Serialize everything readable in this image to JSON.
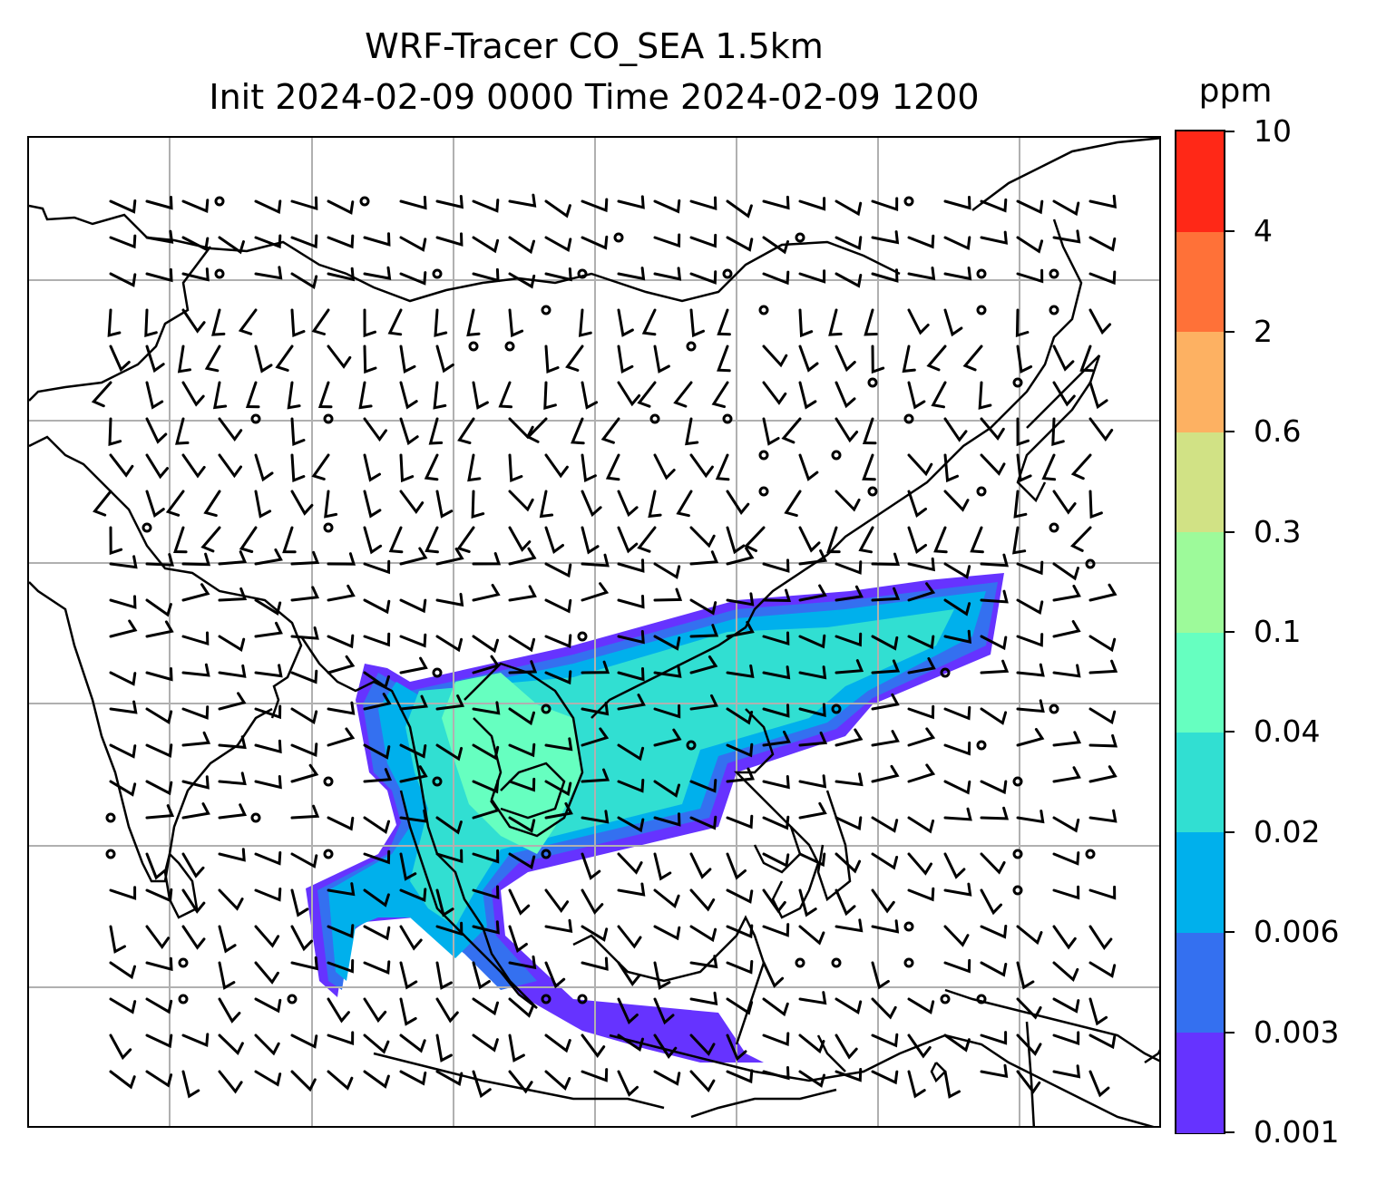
{
  "title": {
    "line1": "WRF-Tracer CO_SEA 1.5km",
    "line2": "Init 2024-02-09 0000 Time 2024-02-09 1200"
  },
  "colorbar": {
    "unit": "ppm",
    "ticks": [
      "0.001",
      "0.003",
      "0.006",
      "0.02",
      "0.04",
      "0.1",
      "0.3",
      "0.6",
      "2",
      "4",
      "10"
    ],
    "colors": [
      "#6633ff",
      "#3470f0",
      "#00b0ec",
      "#31dfd2",
      "#66ffc0",
      "#9dfa9a",
      "#d1e285",
      "#fdb162",
      "#ff7138",
      "#ff2817"
    ]
  },
  "map": {
    "gridlines": true,
    "features": [
      "coastlines",
      "country-borders",
      "wind-barbs",
      "co-tracer-concentration"
    ]
  }
}
